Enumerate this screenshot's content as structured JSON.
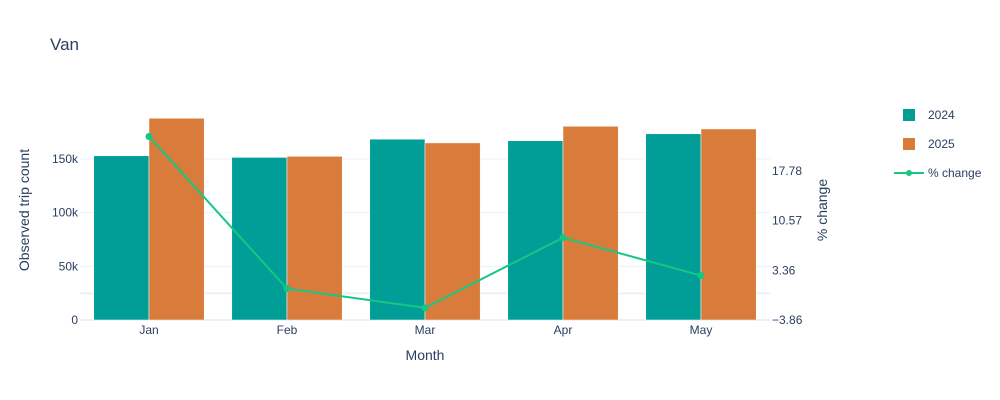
{
  "chart_data": {
    "type": "bar",
    "title": "Van",
    "xlabel": "Month",
    "ylabel": "Observed trip count",
    "y2label": "% change",
    "categories": [
      "Jan",
      "Feb",
      "Mar",
      "Apr",
      "May"
    ],
    "series": [
      {
        "name": "2024",
        "type": "bar",
        "axis": "y",
        "color": "#009e96",
        "values": [
          153000,
          151500,
          168500,
          167000,
          173500
        ]
      },
      {
        "name": "2025",
        "type": "bar",
        "axis": "y",
        "color": "#d97b3a",
        "values": [
          188000,
          152500,
          165000,
          180500,
          178000
        ]
      },
      {
        "name": "% change",
        "type": "line",
        "axis": "y2",
        "color": "#16c784",
        "values": [
          22.8,
          0.7,
          -2.1,
          8.1,
          2.6
        ]
      }
    ],
    "ylim": [
      0,
      205000
    ],
    "yticks": [
      0,
      50000,
      100000,
      150000
    ],
    "ytick_labels": [
      "0",
      "50k",
      "100k",
      "150k"
    ],
    "y2lim": [
      -3.86,
      28.1
    ],
    "y2ticks": [
      -3.86,
      3.36,
      10.57,
      17.78
    ],
    "y2tick_labels": [
      "−3.86",
      "3.36",
      "10.57",
      "17.78"
    ],
    "grid": true,
    "legend_position": "right"
  }
}
